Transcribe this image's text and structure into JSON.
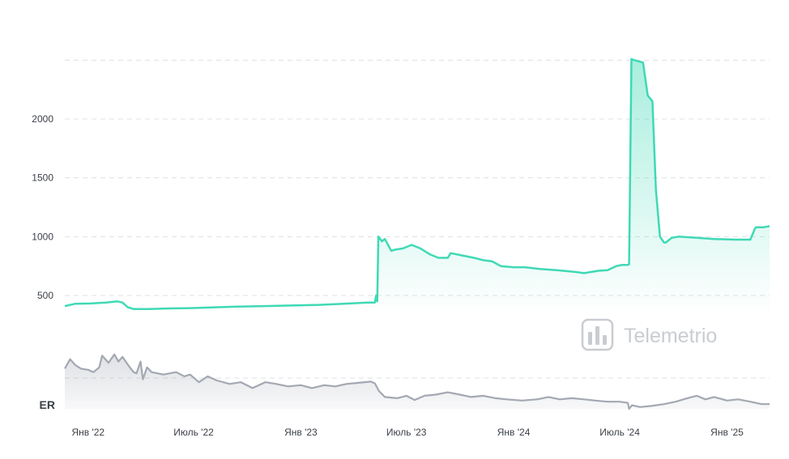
{
  "watermark": {
    "text": "Telemetrio",
    "icon": "bar-chart-icon"
  },
  "colors": {
    "primary": "#3fd9b5",
    "secondary": "#a3a8b2",
    "grid": "#dde0e4",
    "watermark": "#c9ccd1"
  },
  "chart_data": [
    {
      "type": "area",
      "xlabel": "",
      "ylabel": "",
      "x_ticks": [
        "Янв '22",
        "Июль '22",
        "Янв '23",
        "Июль '23",
        "Янв '24",
        "Июль '24",
        "Янв '25"
      ],
      "y_ticks": [
        "500",
        "1000",
        "1500",
        "2000"
      ],
      "ylim": [
        300,
        2600
      ],
      "grid": true,
      "series": [
        {
          "x": [
            "2021-11-22",
            "2021-12-10",
            "2022-01-05",
            "2022-02-01",
            "2022-02-20",
            "2022-03-01",
            "2022-03-10",
            "2022-03-20",
            "2022-04-15",
            "2022-05-20",
            "2022-06-25",
            "2022-08-01",
            "2022-09-15",
            "2022-10-30",
            "2022-12-15",
            "2023-02-01",
            "2023-03-15",
            "2023-04-25",
            "2023-05-08",
            "2023-05-10",
            "2023-05-12",
            "2023-05-14",
            "2023-05-20",
            "2023-05-25",
            "2023-06-05",
            "2023-06-12",
            "2023-06-25",
            "2023-07-10",
            "2023-07-25",
            "2023-08-10",
            "2023-08-25",
            "2023-09-10",
            "2023-09-15",
            "2023-10-05",
            "2023-10-25",
            "2023-11-10",
            "2023-11-25",
            "2023-12-10",
            "2024-01-01",
            "2024-01-20",
            "2024-02-15",
            "2024-03-15",
            "2024-04-15",
            "2024-05-01",
            "2024-05-25",
            "2024-06-10",
            "2024-06-25",
            "2024-07-05",
            "2024-07-15",
            "2024-07-17",
            "2024-07-21",
            "2024-07-26",
            "2024-08-10",
            "2024-08-18",
            "2024-08-26",
            "2024-09-01",
            "2024-09-08",
            "2024-09-15",
            "2024-09-18",
            "2024-09-28",
            "2024-10-10",
            "2024-11-10",
            "2024-12-10",
            "2025-01-15",
            "2025-02-10",
            "2025-02-18",
            "2025-02-20",
            "2025-03-05",
            "2025-03-15"
          ],
          "values": [
            410,
            430,
            432,
            440,
            450,
            440,
            400,
            385,
            385,
            390,
            393,
            398,
            405,
            410,
            415,
            420,
            430,
            440,
            440,
            500,
            450,
            1000,
            960,
            980,
            880,
            890,
            900,
            930,
            900,
            850,
            820,
            820,
            860,
            840,
            820,
            800,
            790,
            750,
            740,
            740,
            725,
            715,
            700,
            690,
            710,
            715,
            750,
            760,
            760,
            765,
            2510,
            2500,
            2480,
            2200,
            2150,
            1400,
            1000,
            950,
            950,
            990,
            1000,
            990,
            980,
            975,
            975,
            1070,
            1080,
            1080,
            1090
          ]
        }
      ]
    },
    {
      "type": "area",
      "ylabel": "ER",
      "ylim": [
        0,
        100
      ],
      "grid": true,
      "series": [
        {
          "x": [
            "2021-11-22",
            "2021-12-01",
            "2021-12-10",
            "2021-12-20",
            "2022-01-01",
            "2022-01-10",
            "2022-01-20",
            "2022-01-25",
            "2022-02-05",
            "2022-02-15",
            "2022-02-22",
            "2022-03-01",
            "2022-03-10",
            "2022-03-20",
            "2022-03-25",
            "2022-04-01",
            "2022-04-05",
            "2022-04-12",
            "2022-04-20",
            "2022-05-10",
            "2022-06-01",
            "2022-06-15",
            "2022-06-25",
            "2022-07-10",
            "2022-07-25",
            "2022-08-10",
            "2022-09-01",
            "2022-09-20",
            "2022-10-10",
            "2022-11-01",
            "2022-11-20",
            "2022-12-10",
            "2023-01-01",
            "2023-01-20",
            "2023-02-10",
            "2023-03-01",
            "2023-03-20",
            "2023-04-10",
            "2023-05-01",
            "2023-05-08",
            "2023-05-15",
            "2023-05-25",
            "2023-06-15",
            "2023-07-01",
            "2023-07-15",
            "2023-08-01",
            "2023-08-20",
            "2023-09-10",
            "2023-10-01",
            "2023-10-20",
            "2023-11-10",
            "2023-12-01",
            "2023-12-20",
            "2024-01-15",
            "2024-02-10",
            "2024-03-01",
            "2024-03-20",
            "2024-04-10",
            "2024-05-01",
            "2024-05-20",
            "2024-06-10",
            "2024-07-01",
            "2024-07-15",
            "2024-07-17",
            "2024-07-22",
            "2024-08-05",
            "2024-08-25",
            "2024-09-15",
            "2024-10-05",
            "2024-10-25",
            "2024-11-10",
            "2024-11-25",
            "2024-12-10",
            "2025-01-01",
            "2025-01-20",
            "2025-02-10",
            "2025-03-01",
            "2025-03-15"
          ],
          "values": [
            68,
            84,
            74,
            68,
            66,
            62,
            70,
            90,
            78,
            92,
            80,
            88,
            75,
            62,
            60,
            80,
            50,
            70,
            62,
            58,
            62,
            55,
            58,
            45,
            55,
            48,
            42,
            45,
            35,
            45,
            42,
            38,
            40,
            35,
            40,
            38,
            42,
            44,
            46,
            43,
            30,
            20,
            18,
            22,
            15,
            22,
            24,
            28,
            24,
            20,
            22,
            18,
            16,
            14,
            16,
            20,
            16,
            18,
            16,
            14,
            12,
            12,
            10,
            0,
            6,
            3,
            5,
            8,
            12,
            18,
            22,
            16,
            20,
            14,
            16,
            12,
            8,
            8
          ]
        }
      ]
    }
  ]
}
